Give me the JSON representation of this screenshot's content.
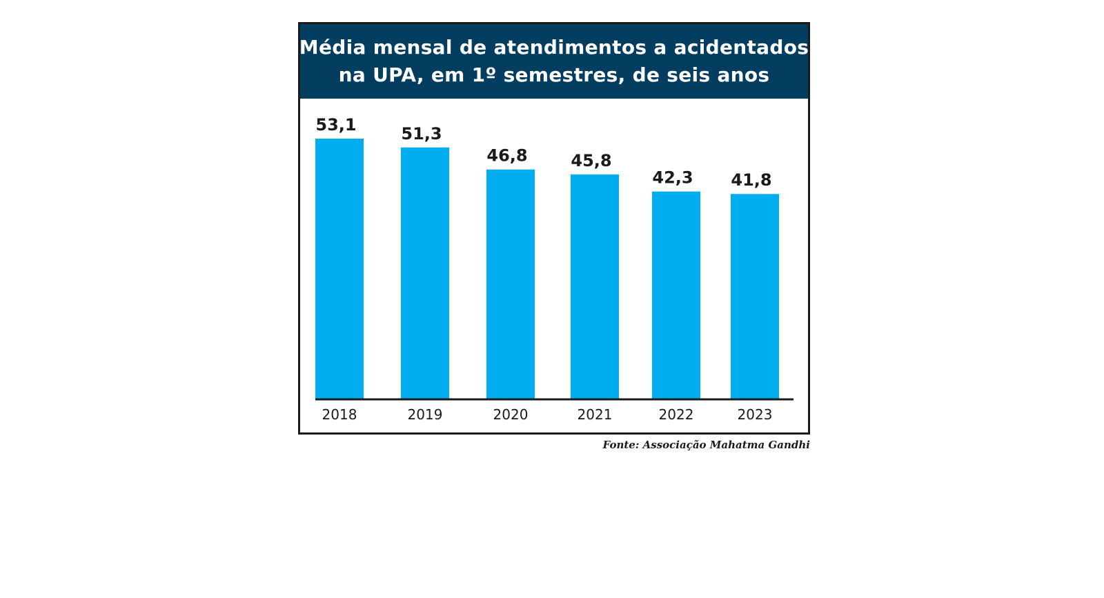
{
  "chart_data": {
    "type": "bar",
    "title_lines": [
      "Média mensal de atendimentos a acidentados",
      "na UPA, em 1º semestres, de seis anos"
    ],
    "categories": [
      "2018",
      "2019",
      "2020",
      "2021",
      "2022",
      "2023"
    ],
    "values": [
      53.1,
      51.3,
      46.8,
      45.8,
      42.3,
      41.8
    ],
    "value_labels": [
      "53,1",
      "51,3",
      "46,8",
      "45,8",
      "42,3",
      "41,8"
    ],
    "xlabel": "",
    "ylabel": "",
    "ylim": [
      0,
      53.1
    ],
    "grid": false,
    "bar_color": "#00aeef",
    "title_bg_color": "#033d5f",
    "source": "Fonte: Associação Mahatma Gandhi"
  }
}
